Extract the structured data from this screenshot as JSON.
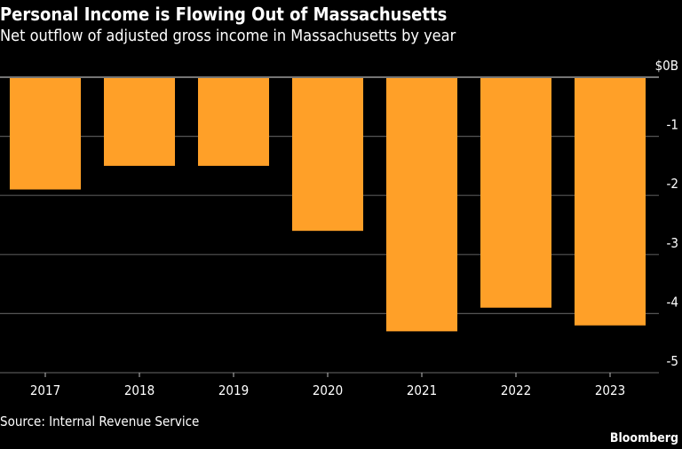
{
  "header": {
    "title": "Personal Income is Flowing Out of Massachusetts",
    "subtitle": "Net outflow of adjusted gross income in Massachusetts by year"
  },
  "footer": {
    "source": "Source: Internal Revenue Service",
    "brand": "Bloomberg"
  },
  "colors": {
    "bar": "#FFA028",
    "grid": "#555555",
    "zero": "#bbbbbb",
    "text": "#ffffff"
  },
  "chart_data": {
    "type": "bar",
    "title": "Personal Income is Flowing Out of Massachusetts",
    "subtitle": "Net outflow of adjusted gross income in Massachusetts by year",
    "xlabel": "",
    "ylabel": "",
    "categories": [
      "2017",
      "2018",
      "2019",
      "2020",
      "2021",
      "2022",
      "2023"
    ],
    "values": [
      -1.9,
      -1.5,
      -1.5,
      -2.6,
      -4.3,
      -3.9,
      -4.2
    ],
    "ylim": [
      -5,
      0
    ],
    "yticks": [
      0,
      -1,
      -2,
      -3,
      -4,
      -5
    ],
    "ytick_labels": [
      "$0B",
      "-1",
      "-2",
      "-3",
      "-4",
      "-5"
    ],
    "grid": true,
    "legend": "none"
  }
}
